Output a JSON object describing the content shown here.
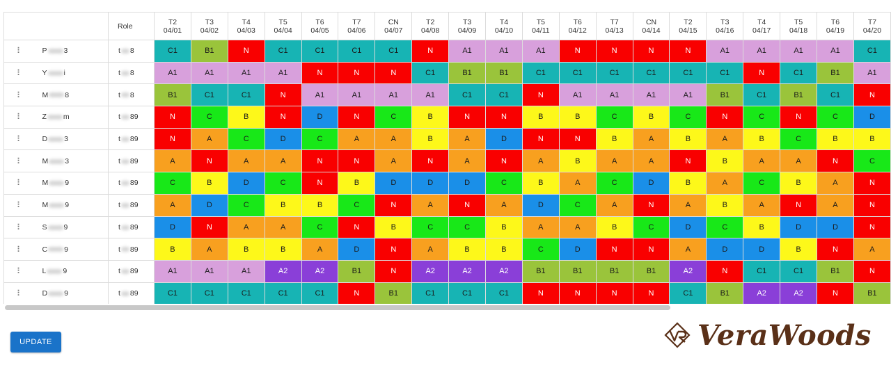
{
  "table": {
    "role_header": "Role",
    "columns": [
      {
        "day": "T2",
        "date": "04/01"
      },
      {
        "day": "T3",
        "date": "04/02"
      },
      {
        "day": "T4",
        "date": "04/03"
      },
      {
        "day": "T5",
        "date": "04/04"
      },
      {
        "day": "T6",
        "date": "04/05"
      },
      {
        "day": "T7",
        "date": "04/06"
      },
      {
        "day": "CN",
        "date": "04/07"
      },
      {
        "day": "T2",
        "date": "04/08"
      },
      {
        "day": "T3",
        "date": "04/09"
      },
      {
        "day": "T4",
        "date": "04/10"
      },
      {
        "day": "T5",
        "date": "04/11"
      },
      {
        "day": "T6",
        "date": "04/12"
      },
      {
        "day": "T7",
        "date": "04/13"
      },
      {
        "day": "CN",
        "date": "04/14"
      },
      {
        "day": "T2",
        "date": "04/15"
      },
      {
        "day": "T3",
        "date": "04/16"
      },
      {
        "day": "T4",
        "date": "04/17"
      },
      {
        "day": "T5",
        "date": "04/18"
      },
      {
        "day": "T6",
        "date": "04/19"
      },
      {
        "day": "T7",
        "date": "04/20"
      }
    ],
    "rows": [
      {
        "name_start": "P",
        "name_end": "3",
        "role_start": "t",
        "role_end": "8",
        "shifts": [
          "C1",
          "B1",
          "N",
          "C1",
          "C1",
          "C1",
          "C1",
          "N",
          "A1",
          "A1",
          "A1",
          "N",
          "N",
          "N",
          "N",
          "A1",
          "A1",
          "A1",
          "A1",
          "C1"
        ]
      },
      {
        "name_start": "Y",
        "name_end": "i",
        "role_start": "t",
        "role_end": "8",
        "shifts": [
          "A1",
          "A1",
          "A1",
          "A1",
          "N",
          "N",
          "N",
          "C1",
          "B1",
          "B1",
          "C1",
          "C1",
          "C1",
          "C1",
          "C1",
          "C1",
          "N",
          "C1",
          "B1",
          "A1"
        ]
      },
      {
        "name_start": "M",
        "name_end": "8",
        "role_start": "t",
        "role_end": "8",
        "shifts": [
          "B1",
          "C1",
          "C1",
          "N",
          "A1",
          "A1",
          "A1",
          "A1",
          "C1",
          "C1",
          "N",
          "A1",
          "A1",
          "A1",
          "A1",
          "B1",
          "C1",
          "B1",
          "C1",
          "N"
        ]
      },
      {
        "name_start": "Z",
        "name_end": "m",
        "role_start": "t",
        "role_end": "89",
        "shifts": [
          "N",
          "C",
          "B",
          "N",
          "D",
          "N",
          "C",
          "B",
          "N",
          "N",
          "B",
          "B",
          "C",
          "B",
          "C",
          "N",
          "C",
          "N",
          "C",
          "D"
        ]
      },
      {
        "name_start": "D",
        "name_end": "3",
        "role_start": "t",
        "role_end": "89",
        "shifts": [
          "N",
          "A",
          "C",
          "D",
          "C",
          "A",
          "A",
          "B",
          "A",
          "D",
          "N",
          "N",
          "B",
          "A",
          "B",
          "A",
          "B",
          "C",
          "B",
          "B"
        ]
      },
      {
        "name_start": "M",
        "name_end": "3",
        "role_start": "t",
        "role_end": "89",
        "shifts": [
          "A",
          "N",
          "A",
          "A",
          "N",
          "N",
          "A",
          "N",
          "A",
          "N",
          "A",
          "B",
          "A",
          "A",
          "N",
          "B",
          "A",
          "A",
          "N",
          "C"
        ]
      },
      {
        "name_start": "M",
        "name_end": "9",
        "role_start": "t",
        "role_end": "89",
        "shifts": [
          "C",
          "B",
          "D",
          "C",
          "N",
          "B",
          "D",
          "D",
          "D",
          "C",
          "B",
          "A",
          "C",
          "D",
          "B",
          "A",
          "C",
          "B",
          "A",
          "N"
        ]
      },
      {
        "name_start": "M",
        "name_end": "9",
        "role_start": "t",
        "role_end": "89",
        "shifts": [
          "A",
          "D",
          "C",
          "B",
          "B",
          "C",
          "N",
          "A",
          "N",
          "A",
          "D",
          "C",
          "A",
          "N",
          "A",
          "B",
          "A",
          "N",
          "A",
          "N"
        ]
      },
      {
        "name_start": "S",
        "name_end": "9",
        "role_start": "t",
        "role_end": "89",
        "shifts": [
          "D",
          "N",
          "A",
          "A",
          "C",
          "N",
          "B",
          "C",
          "C",
          "B",
          "A",
          "A",
          "B",
          "C",
          "D",
          "C",
          "B",
          "D",
          "D",
          "N"
        ]
      },
      {
        "name_start": "C",
        "name_end": "9",
        "role_start": "t",
        "role_end": "89",
        "shifts": [
          "B",
          "A",
          "B",
          "B",
          "A",
          "D",
          "N",
          "A",
          "B",
          "B",
          "C",
          "D",
          "N",
          "N",
          "A",
          "D",
          "D",
          "B",
          "N",
          "A"
        ]
      },
      {
        "name_start": "L",
        "name_end": "9",
        "role_start": "t",
        "role_end": "89",
        "shifts": [
          "A1",
          "A1",
          "A1",
          "A2",
          "A2",
          "B1",
          "N",
          "A2",
          "A2",
          "A2",
          "B1",
          "B1",
          "B1",
          "B1",
          "A2",
          "N",
          "C1",
          "C1",
          "B1",
          "N"
        ]
      },
      {
        "name_start": "D",
        "name_end": "9",
        "role_start": "t",
        "role_end": "89",
        "shifts": [
          "C1",
          "C1",
          "C1",
          "C1",
          "C1",
          "N",
          "B1",
          "C1",
          "C1",
          "C1",
          "N",
          "N",
          "N",
          "N",
          "C1",
          "B1",
          "A2",
          "A2",
          "N",
          "B1"
        ]
      }
    ]
  },
  "shift_colors": {
    "N": "#f90000",
    "C1": "#17b4b4",
    "B1": "#9ac43b",
    "A1": "#d8a0dc",
    "A2": "#8a3fd8",
    "C": "#18e818",
    "B": "#fdf81a",
    "A": "#f8a01f",
    "D": "#1a8fe8"
  },
  "update_button": {
    "label": "UPDATE",
    "color": "#1a73c9"
  },
  "logo": {
    "text": "VeraWoods",
    "color": "#5a3018"
  },
  "icons": {
    "row_handle": "drag-handle-icon",
    "logo_mark": "vr-logo-icon"
  }
}
